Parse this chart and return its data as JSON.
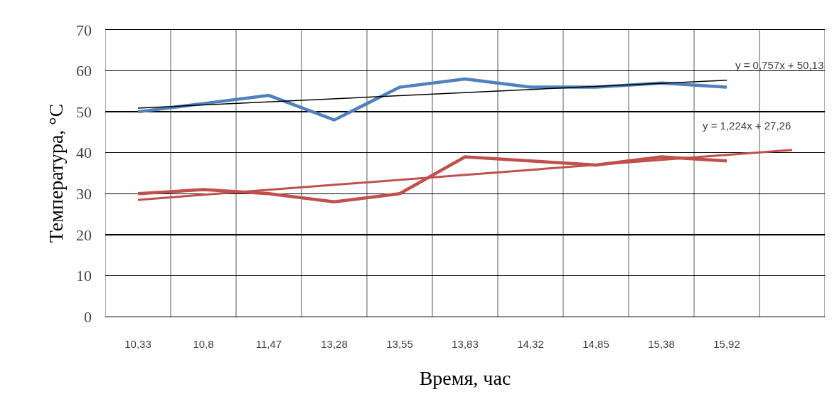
{
  "chart_data": {
    "type": "line",
    "xlabel": "Время, час",
    "ylabel": "Температура, °С",
    "categories": [
      "10,33",
      "10,8",
      "11,47",
      "13,28",
      "13,55",
      "13,83",
      "14,32",
      "14,85",
      "15,38",
      "15,92",
      null
    ],
    "series": [
      {
        "color": "#4f81bd",
        "values": [
          50,
          52,
          54,
          48,
          56,
          58,
          56,
          56,
          57,
          56,
          null
        ]
      },
      {
        "color": "#c0504d",
        "values": [
          30,
          31,
          30,
          28,
          30,
          39,
          38,
          37,
          39,
          38,
          null
        ]
      },
      {
        "color": "#000000",
        "values": [
          50.9,
          null,
          null,
          null,
          null,
          null,
          null,
          null,
          null,
          57.7,
          null
        ]
      },
      {
        "color": "#c0504d",
        "values": [
          28.5,
          null,
          null,
          null,
          null,
          null,
          null,
          null,
          null,
          null,
          40.7
        ]
      }
    ],
    "ylim": [
      0,
      70
    ],
    "yticks": [
      0,
      10,
      20,
      30,
      40,
      50,
      60,
      70
    ],
    "grid": true,
    "marker": "none",
    "line_style": "solid",
    "annotations": [
      "y = 0,757x + 50,13",
      "y = 1,224x + 27,26"
    ]
  }
}
